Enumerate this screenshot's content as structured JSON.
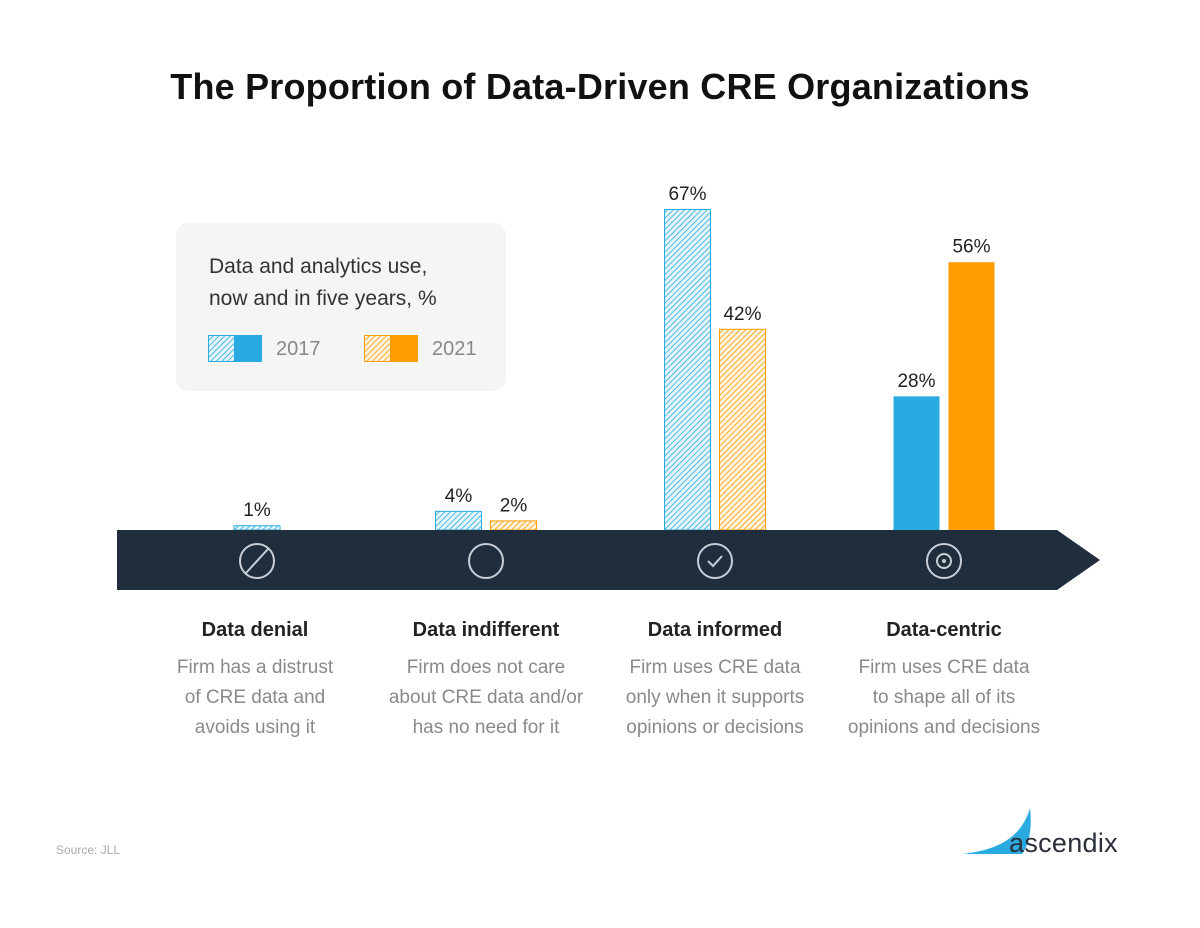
{
  "title": "The Proportion of Data-Driven CRE Organizations",
  "legend": {
    "title_lines": [
      "Data and analytics use,",
      "now and in five years, %"
    ],
    "items": [
      {
        "label": "2017",
        "color": "#29abe2"
      },
      {
        "label": "2021",
        "color": "#ff9d00"
      }
    ]
  },
  "chart_data": {
    "type": "bar",
    "title": "The Proportion of Data-Driven CRE Organizations",
    "categories": [
      "Data denial",
      "Data indifferent",
      "Data informed",
      "Data-centric"
    ],
    "series": [
      {
        "name": "2017",
        "values": [
          1,
          4,
          67,
          28
        ],
        "data_labels": [
          "1%",
          "4%",
          "67%",
          "28%"
        ]
      },
      {
        "name": "2021",
        "values": [
          0,
          2,
          42,
          56
        ],
        "data_labels": [
          "",
          "2%",
          "42%",
          "56%"
        ]
      }
    ],
    "ylim": [
      0,
      67
    ],
    "xlabel": "",
    "ylabel": "",
    "grid": false,
    "legend_position": "top-left"
  },
  "categories": [
    {
      "title": "Data denial",
      "desc": [
        "Firm has a distrust",
        "of CRE data and",
        "avoids using it"
      ],
      "icon": "slash-circle-icon"
    },
    {
      "title": "Data indifferent",
      "desc": [
        "Firm does not care",
        "about CRE data and/or",
        "has no need for it"
      ],
      "icon": "empty-circle-icon"
    },
    {
      "title": "Data informed",
      "desc": [
        "Firm uses CRE data",
        "only when it supports",
        "opinions or decisions"
      ],
      "icon": "check-circle-icon"
    },
    {
      "title": "Data-centric",
      "desc": [
        "Firm uses CRE data",
        "to shape all of its",
        "opinions and decisions"
      ],
      "icon": "target-circle-icon"
    }
  ],
  "source": "Source:  JLL",
  "logo": {
    "text": "ascendix",
    "accent": "#29abe2"
  },
  "colors": {
    "band": "#1f2d3d",
    "blue": "#29abe2",
    "orange": "#ff9d00"
  }
}
